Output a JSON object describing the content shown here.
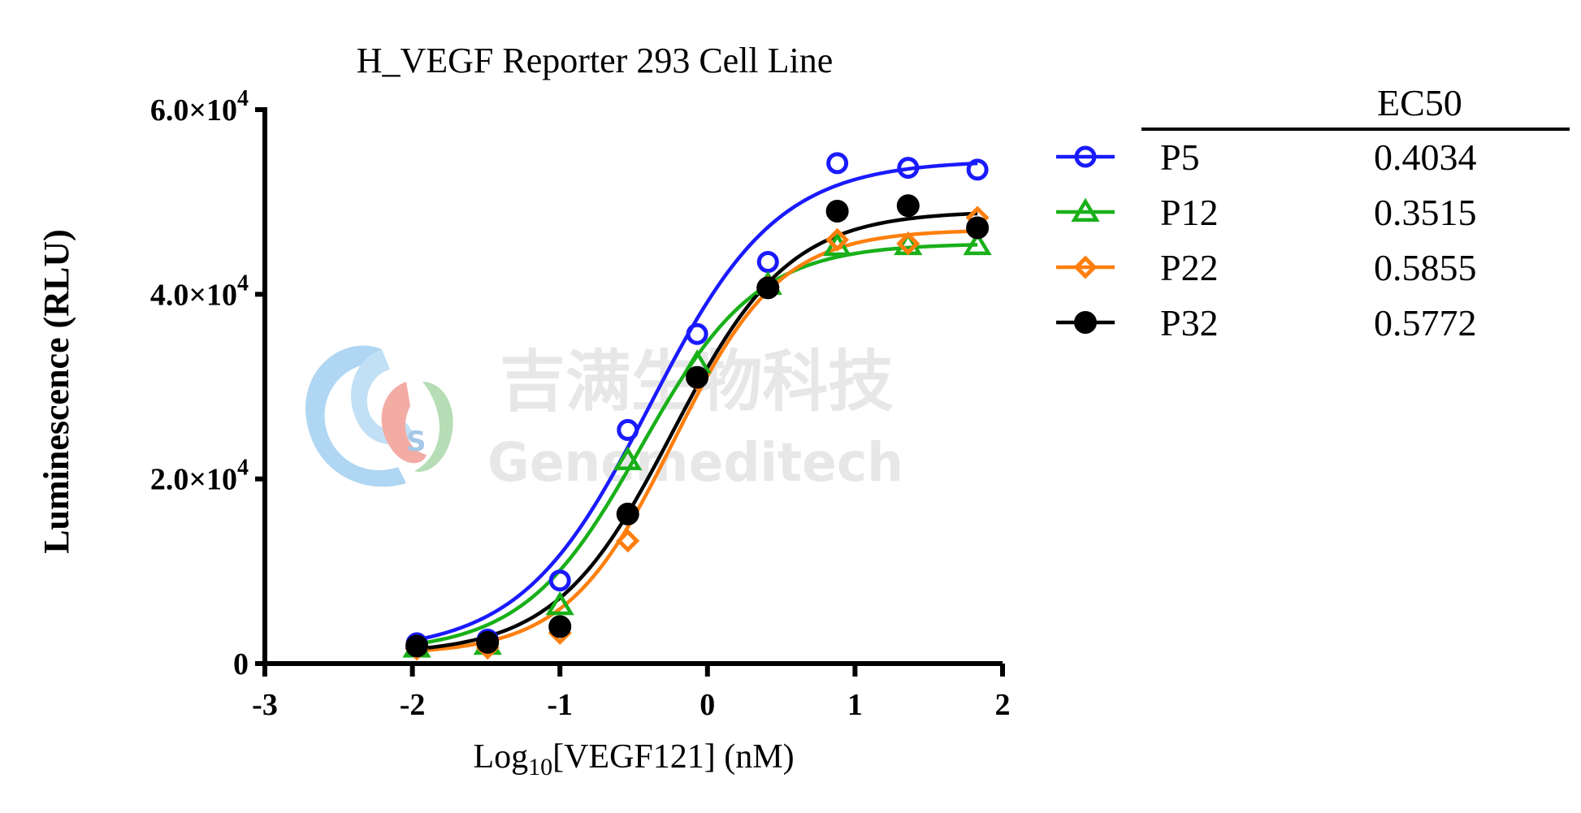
{
  "watermark": {
    "chinese": "吉满生物科技",
    "english": "Genemeditech"
  },
  "chart_data": {
    "type": "scatter",
    "title": "H_VEGF Reporter 293 Cell Line",
    "xlabel_prefix": "Log",
    "xlabel_sub": "10",
    "xlabel_suffix": "[VEGF121] (nM)",
    "ylabel": "Luminescence (RLU)",
    "xlim": [
      -3,
      2
    ],
    "ylim": [
      0,
      60000
    ],
    "x_ticks": [
      {
        "value": -3,
        "label": "-3"
      },
      {
        "value": -2,
        "label": "-2"
      },
      {
        "value": -1,
        "label": "-1"
      },
      {
        "value": 0,
        "label": "0"
      },
      {
        "value": 1,
        "label": "1"
      },
      {
        "value": 2,
        "label": "2"
      }
    ],
    "y_ticks": [
      {
        "value": 0,
        "mant": "0",
        "exp": ""
      },
      {
        "value": 20000,
        "mant": "2.0×10",
        "exp": "4"
      },
      {
        "value": 40000,
        "mant": "4.0×10",
        "exp": "4"
      },
      {
        "value": 60000,
        "mant": "6.0×10",
        "exp": "4"
      }
    ],
    "legend_header": "EC50",
    "legend_position": "right",
    "grid": false,
    "series": [
      {
        "name": "P5",
        "ec50": "0.4034",
        "color": "#1a1aff",
        "marker": "circle-open",
        "fit": {
          "bottom": 1200,
          "top": 54500,
          "hill": 1.0
        },
        "x": [
          -1.97,
          -1.49,
          -1.0,
          -0.54,
          -0.07,
          0.41,
          0.88,
          1.36,
          1.83
        ],
        "y": [
          2200,
          2600,
          9000,
          25300,
          35700,
          43500,
          54200,
          53700,
          53500
        ]
      },
      {
        "name": "P12",
        "ec50": "0.3515",
        "color": "#19b019",
        "marker": "triangle-open",
        "fit": {
          "bottom": 1200,
          "top": 45500,
          "hill": 1.1
        },
        "x": [
          -1.97,
          -1.49,
          -1.0,
          -0.54,
          -0.07,
          0.41,
          0.88,
          1.36,
          1.83
        ],
        "y": [
          1700,
          2000,
          6300,
          22000,
          32500,
          41000,
          45200,
          45300,
          45300
        ]
      },
      {
        "name": "P22",
        "ec50": "0.5855",
        "color": "#ff7f0e",
        "marker": "diamond-open",
        "fit": {
          "bottom": 1000,
          "top": 47000,
          "hill": 1.2
        },
        "x": [
          -1.97,
          -1.49,
          -1.0,
          -0.54,
          -0.07,
          0.41,
          0.88,
          1.36,
          1.83
        ],
        "y": [
          1600,
          1700,
          3300,
          13300,
          30800,
          40800,
          45900,
          45500,
          48300
        ]
      },
      {
        "name": "P32",
        "ec50": "0.5772",
        "color": "#000000",
        "marker": "circle-filled",
        "fit": {
          "bottom": 1000,
          "top": 49000,
          "hill": 1.1
        },
        "x": [
          -1.97,
          -1.49,
          -1.0,
          -0.54,
          -0.07,
          0.41,
          0.88,
          1.36,
          1.83
        ],
        "y": [
          1900,
          2300,
          4000,
          16200,
          31000,
          40700,
          49000,
          49600,
          47200
        ]
      }
    ]
  }
}
